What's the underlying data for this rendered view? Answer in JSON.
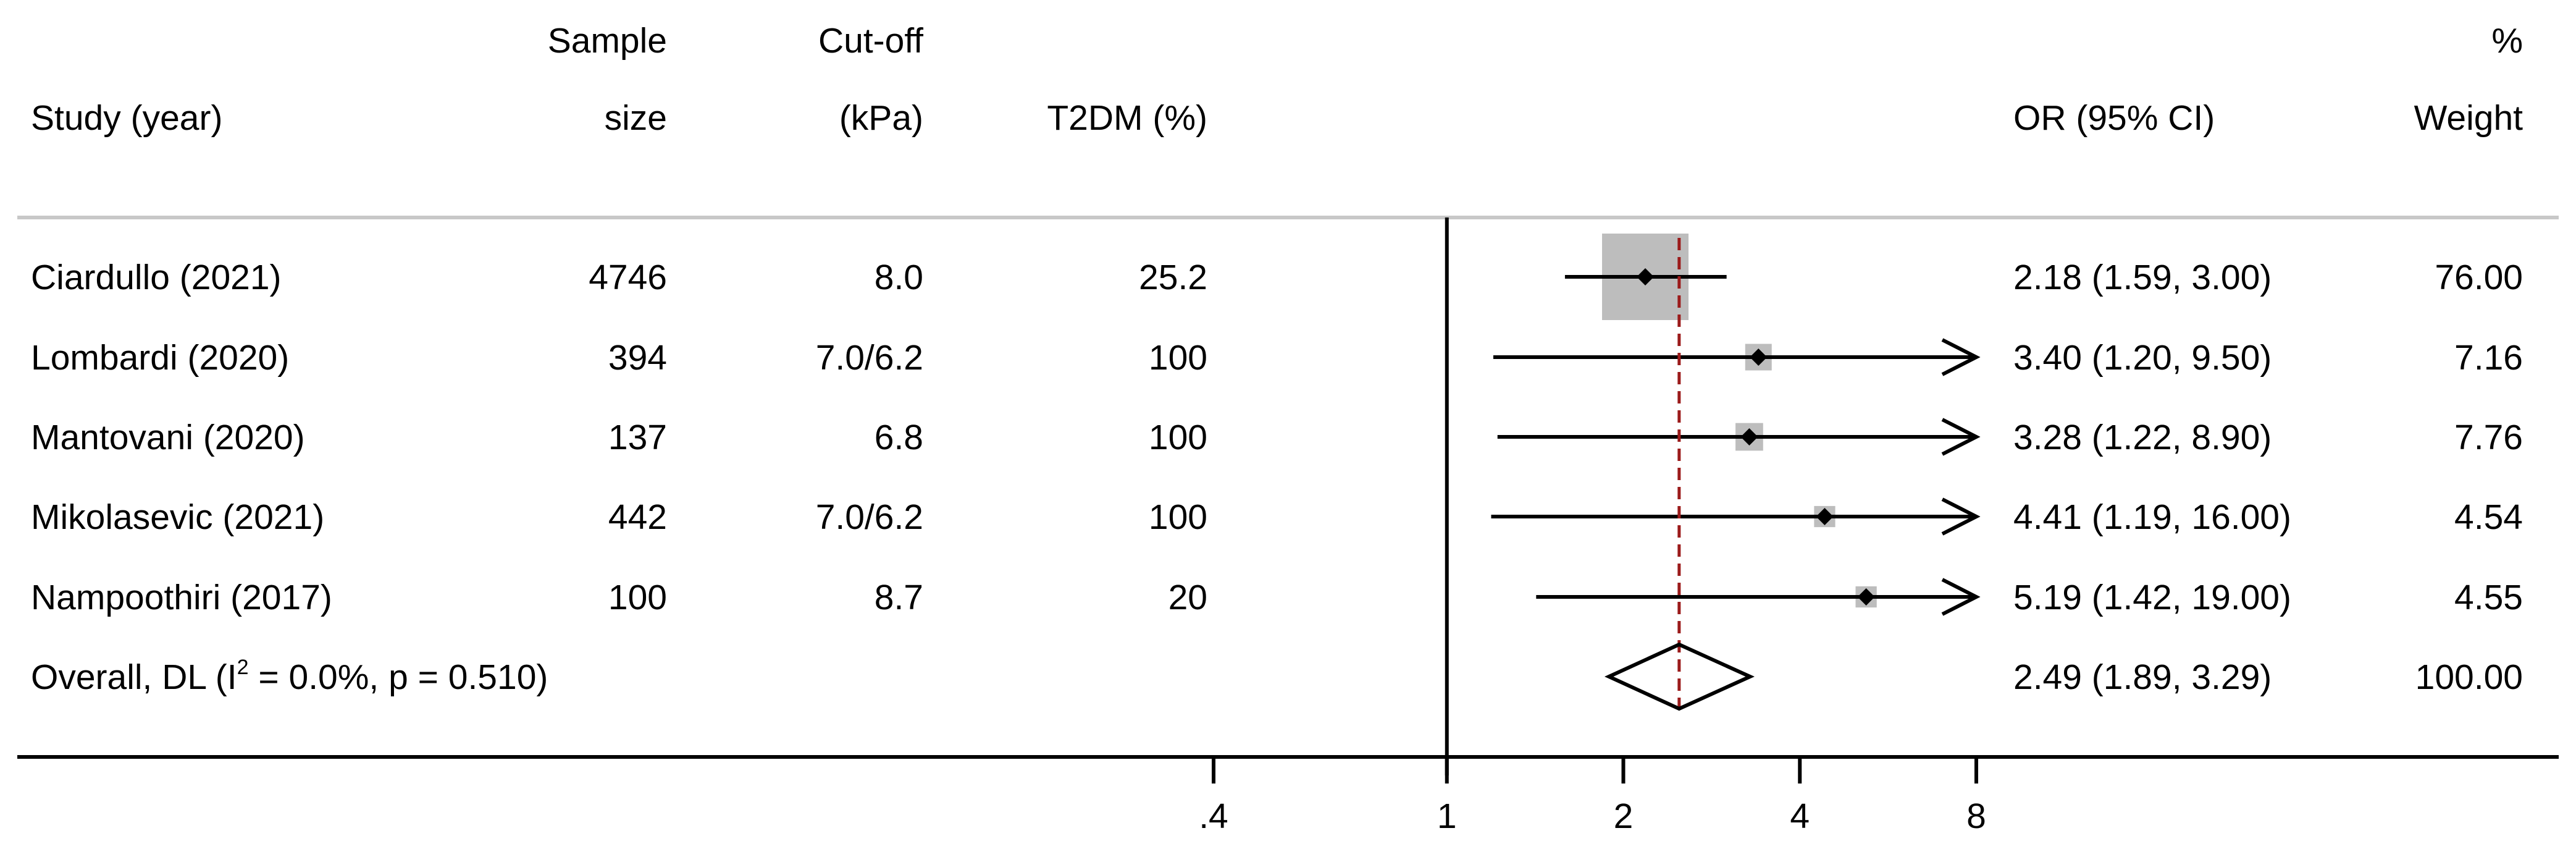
{
  "headers": {
    "study": "Study (year)",
    "sample_top": "Sample",
    "sample_bottom": "size",
    "cutoff_top": "Cut-off",
    "cutoff_bottom": "(kPa)",
    "t2dm": "T2DM (%)",
    "or": "OR (95% CI)",
    "weight_top": "%",
    "weight_bottom": "Weight"
  },
  "chart_data": {
    "type": "forest",
    "title": "",
    "xlabel": "",
    "ylabel": "",
    "x_scale": "log",
    "x_ticks": [
      0.4,
      1,
      2,
      4,
      8
    ],
    "x_tick_labels": [
      ".4",
      "1",
      "2",
      "4",
      "8"
    ],
    "xlim": [
      0.4,
      8
    ],
    "null_line": 1,
    "studies": [
      {
        "study": "Ciardullo (2021)",
        "sample_size": "4746",
        "cutoff": "8.0",
        "t2dm": "25.2",
        "or": 2.18,
        "ci_low": 1.59,
        "ci_high": 3.0,
        "or_text": "2.18 (1.59, 3.00)",
        "weight": 76.0,
        "weight_text": "76.00",
        "arrow_right": false
      },
      {
        "study": "Lombardi (2020)",
        "sample_size": "394",
        "cutoff": "7.0/6.2",
        "t2dm": "100",
        "or": 3.4,
        "ci_low": 1.2,
        "ci_high": 9.5,
        "or_text": "3.40 (1.20, 9.50)",
        "weight": 7.16,
        "weight_text": "7.16",
        "arrow_right": true
      },
      {
        "study": "Mantovani (2020)",
        "sample_size": "137",
        "cutoff": "6.8",
        "t2dm": "100",
        "or": 3.28,
        "ci_low": 1.22,
        "ci_high": 8.9,
        "or_text": "3.28 (1.22, 8.90)",
        "weight": 7.76,
        "weight_text": "7.76",
        "arrow_right": true
      },
      {
        "study": "Mikolasevic (2021)",
        "sample_size": "442",
        "cutoff": "7.0/6.2",
        "t2dm": "100",
        "or": 4.41,
        "ci_low": 1.19,
        "ci_high": 16.0,
        "or_text": "4.41 (1.19, 16.00)",
        "weight": 4.54,
        "weight_text": "4.54",
        "arrow_right": true
      },
      {
        "study": "Nampoothiri (2017)",
        "sample_size": "100",
        "cutoff": "8.7",
        "t2dm": "20",
        "or": 5.19,
        "ci_low": 1.42,
        "ci_high": 19.0,
        "or_text": "5.19 (1.42, 19.00)",
        "weight": 4.55,
        "weight_text": "4.55",
        "arrow_right": true
      }
    ],
    "overall": {
      "label_prefix": "Overall, DL (I",
      "label_sup": "2",
      "label_suffix": " = 0.0%, p = 0.510)",
      "or": 2.49,
      "ci_low": 1.89,
      "ci_high": 3.29,
      "or_text": "2.49 (1.89, 3.29)",
      "weight_text": "100.00"
    },
    "colors": {
      "weight_box": "#bdbdbd",
      "pooled_line": "#9b1b1b",
      "header_rule": "#c8c8c8",
      "ink": "#000000"
    }
  }
}
